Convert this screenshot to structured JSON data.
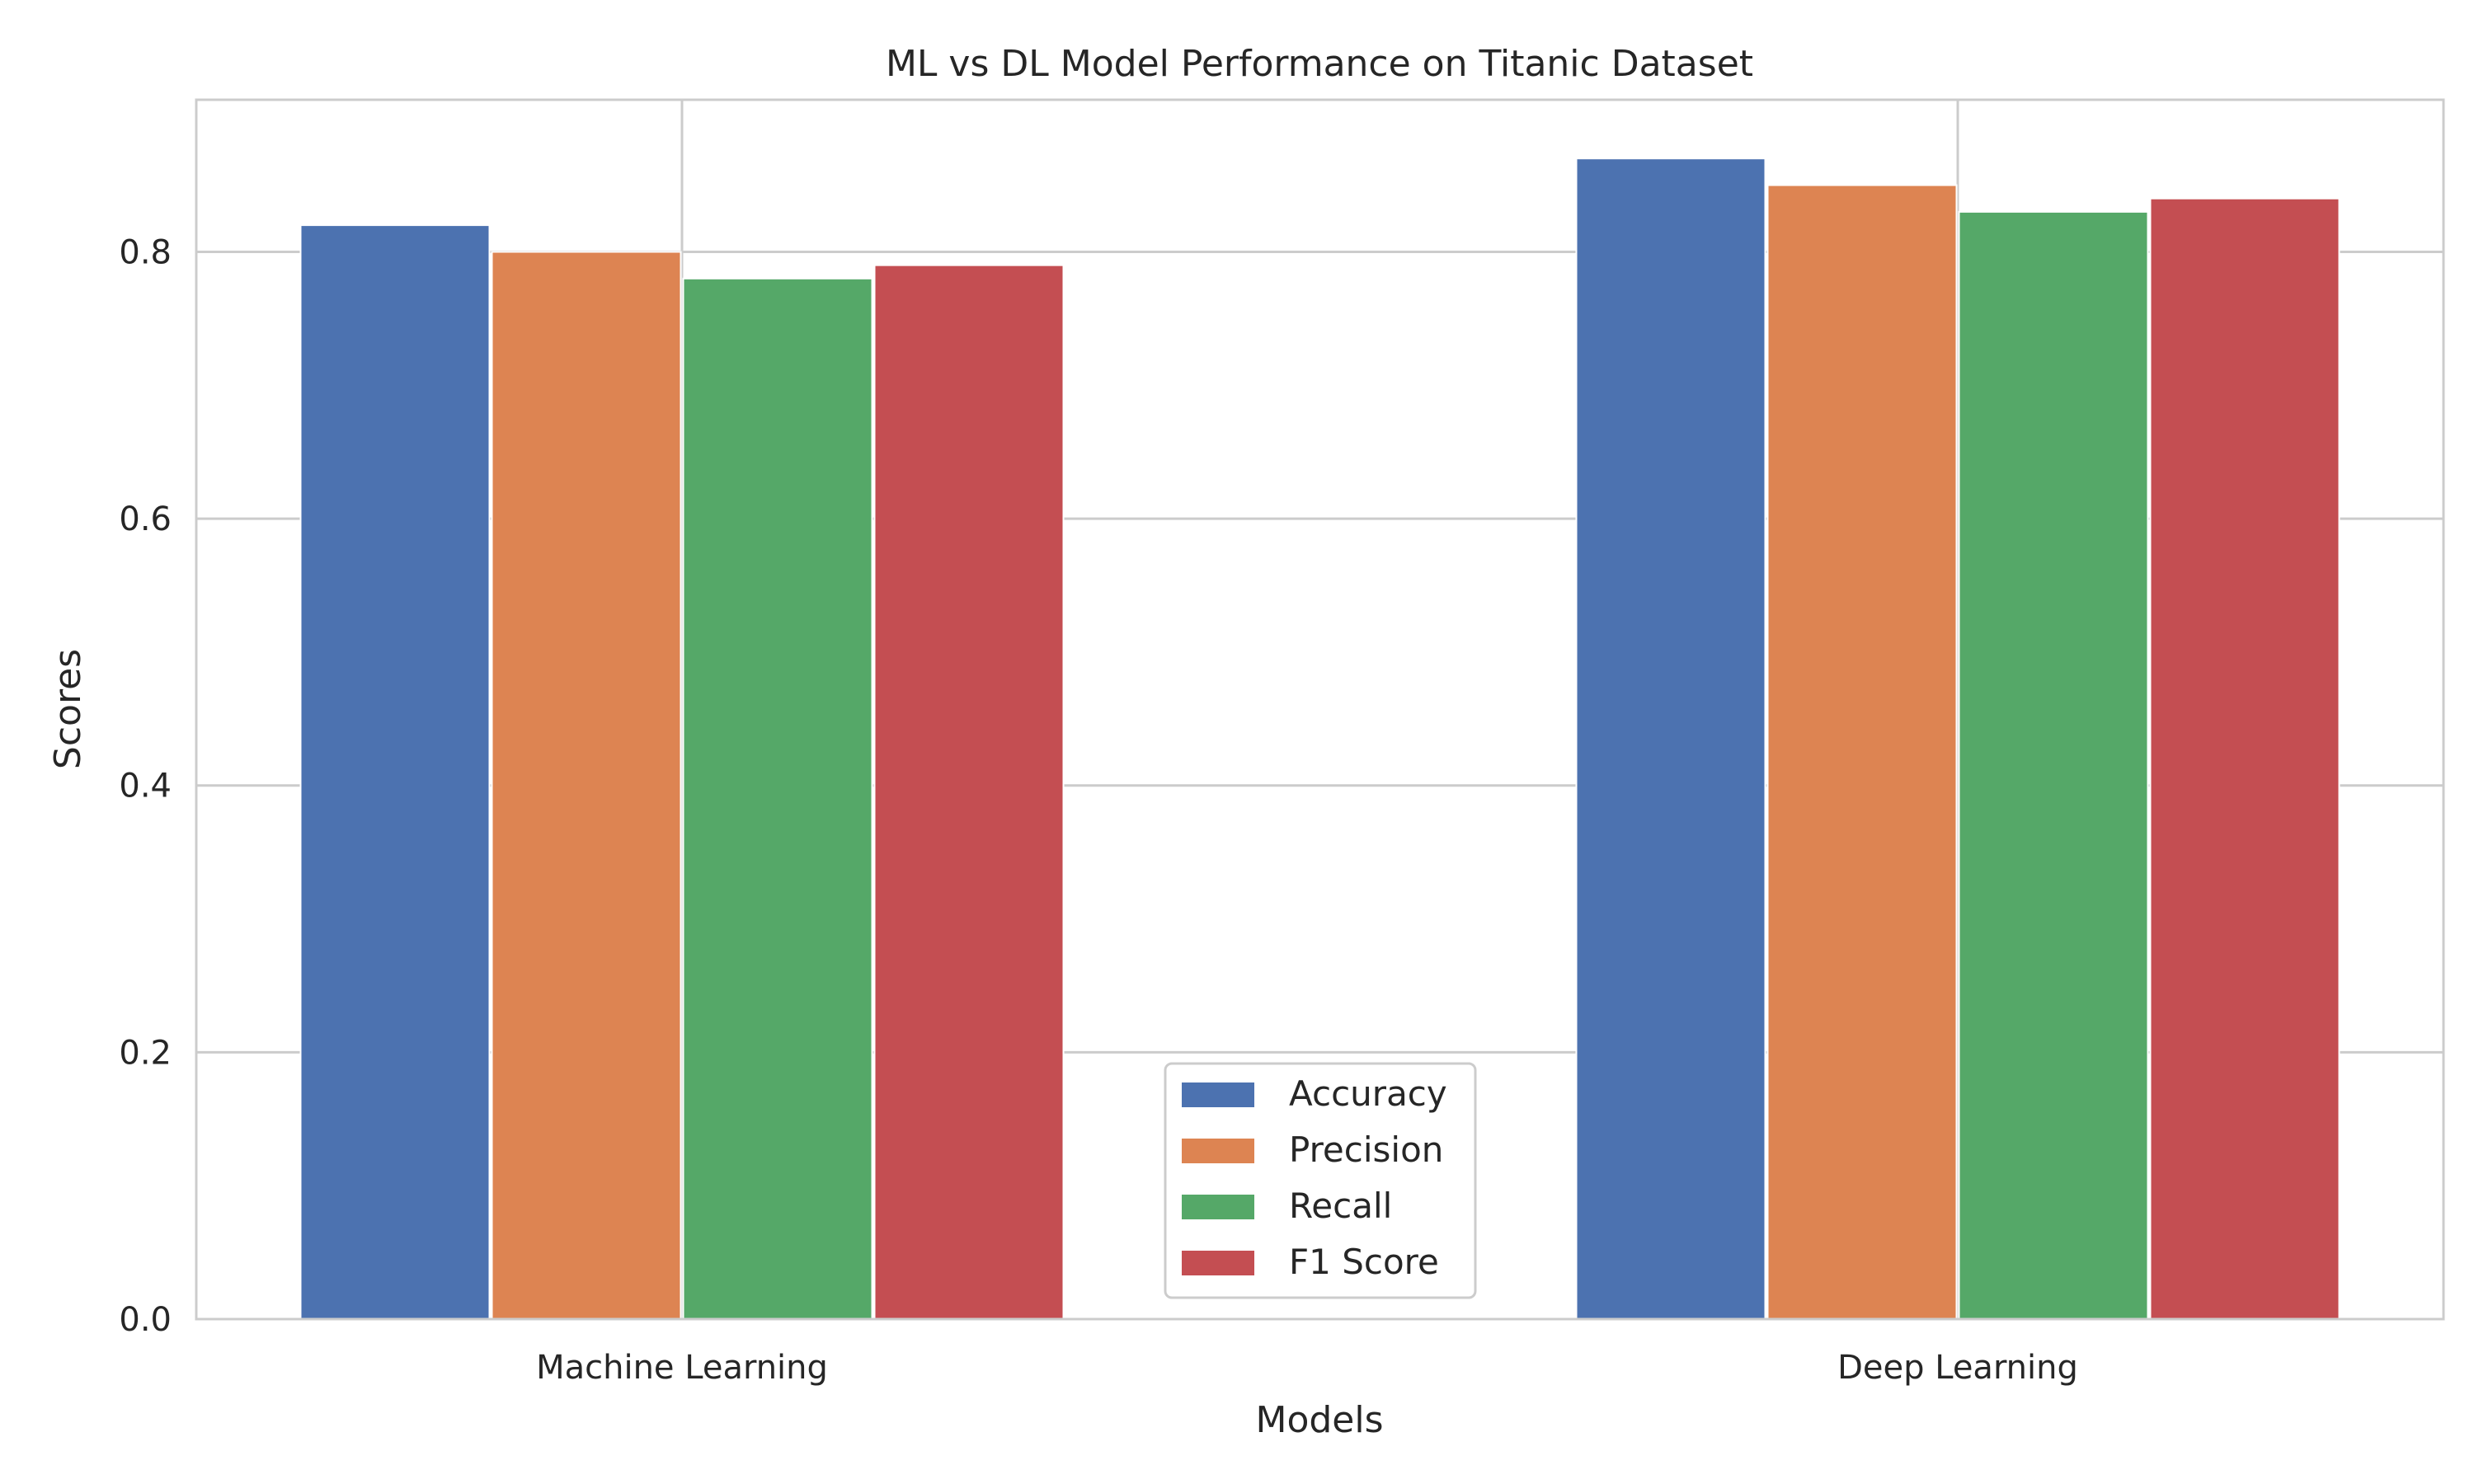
{
  "chart_data": {
    "type": "bar",
    "title": "ML vs DL Model Performance on Titanic Dataset",
    "xlabel": "Models",
    "ylabel": "Scores",
    "categories": [
      "Machine Learning",
      "Deep Learning"
    ],
    "series": [
      {
        "name": "Accuracy",
        "values": [
          0.82,
          0.87
        ],
        "color": "#4c72b0"
      },
      {
        "name": "Precision",
        "values": [
          0.8,
          0.85
        ],
        "color": "#dd8452"
      },
      {
        "name": "Recall",
        "values": [
          0.78,
          0.83
        ],
        "color": "#55a868"
      },
      {
        "name": "F1 Score",
        "values": [
          0.79,
          0.84
        ],
        "color": "#c44e52"
      }
    ],
    "ylim": [
      0,
      0.914
    ],
    "yticks": [
      "0.0",
      "0.2",
      "0.4",
      "0.6",
      "0.8"
    ],
    "grid": true,
    "legend_position": "lower-center",
    "colors": {
      "grid": "#cccccc",
      "axes_border": "#cccccc",
      "text": "#262626",
      "background": "#ffffff"
    }
  }
}
